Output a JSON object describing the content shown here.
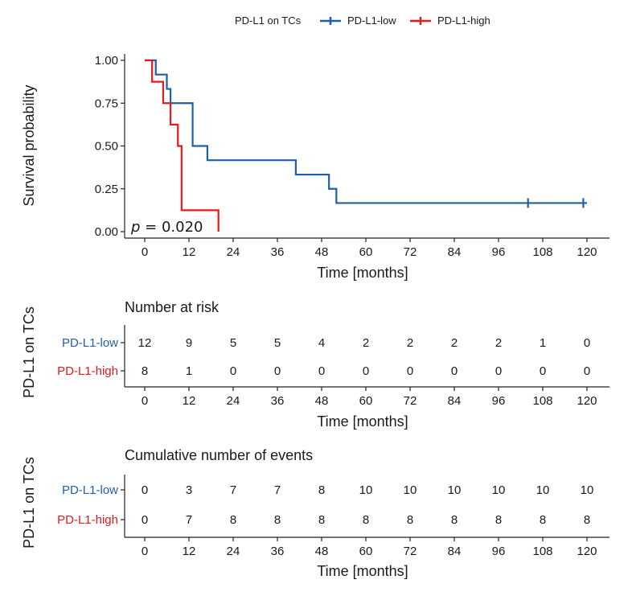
{
  "chart_data": [
    {
      "type": "line",
      "subtype": "kaplan-meier",
      "legend": {
        "title": "PD-L1 on TCs",
        "position": "top",
        "entries": [
          "PD-L1-low",
          "PD-L1-high"
        ]
      },
      "xlabel": "Time [months]",
      "ylabel": "Survival probability",
      "xlim": [
        0,
        120
      ],
      "ylim": [
        0,
        1
      ],
      "xticks": [
        0,
        12,
        24,
        36,
        48,
        60,
        72,
        84,
        96,
        108,
        120
      ],
      "xtick_labels": [
        "0",
        "12",
        "24",
        "36",
        "48",
        "60",
        "72",
        "84",
        "96",
        "108",
        "120"
      ],
      "yticks": [
        0,
        0.25,
        0.5,
        0.75,
        1.0
      ],
      "ytick_labels": [
        "0.00",
        "0.25",
        "0.50",
        "0.75",
        "1.00"
      ],
      "grid": false,
      "annotation": {
        "p_label": "p",
        "p_value": " = 0.020"
      },
      "series": [
        {
          "name": "PD-L1-low",
          "color": "#1f5fa8",
          "steps": [
            [
              0,
              1.0
            ],
            [
              3,
              0.917
            ],
            [
              6,
              0.833
            ],
            [
              7,
              0.75
            ],
            [
              13,
              0.5
            ],
            [
              17,
              0.417
            ],
            [
              41,
              0.333
            ],
            [
              50,
              0.25
            ],
            [
              52,
              0.167
            ],
            [
              120,
              0.167
            ]
          ],
          "censored": [
            [
              104,
              0.167
            ],
            [
              119,
              0.167
            ]
          ]
        },
        {
          "name": "PD-L1-high",
          "color": "#e41a1c",
          "steps": [
            [
              0,
              1.0
            ],
            [
              2,
              0.875
            ],
            [
              5,
              0.75
            ],
            [
              7,
              0.625
            ],
            [
              9,
              0.5
            ],
            [
              10,
              0.125
            ],
            [
              20,
              0.0
            ]
          ],
          "censored": []
        }
      ]
    },
    {
      "type": "table",
      "title": "Number at risk",
      "ylabel": "PD-L1 on TCs",
      "xlabel": "Time [months]",
      "columns": [
        "0",
        "12",
        "24",
        "36",
        "48",
        "60",
        "72",
        "84",
        "96",
        "108",
        "120"
      ],
      "rows": [
        {
          "name": "PD-L1-low",
          "color": "#1f5fa8",
          "values": [
            "12",
            "9",
            "5",
            "5",
            "4",
            "2",
            "2",
            "2",
            "2",
            "1",
            "0"
          ]
        },
        {
          "name": "PD-L1-high",
          "color": "#e41a1c",
          "values": [
            "8",
            "1",
            "0",
            "0",
            "0",
            "0",
            "0",
            "0",
            "0",
            "0",
            "0"
          ]
        }
      ]
    },
    {
      "type": "table",
      "title": "Cumulative number of events",
      "ylabel": "PD-L1 on TCs",
      "xlabel": "Time [months]",
      "columns": [
        "0",
        "12",
        "24",
        "36",
        "48",
        "60",
        "72",
        "84",
        "96",
        "108",
        "120"
      ],
      "rows": [
        {
          "name": "PD-L1-low",
          "color": "#1f5fa8",
          "values": [
            "0",
            "3",
            "7",
            "7",
            "8",
            "10",
            "10",
            "10",
            "10",
            "10",
            "10"
          ]
        },
        {
          "name": "PD-L1-high",
          "color": "#e41a1c",
          "values": [
            "0",
            "7",
            "8",
            "8",
            "8",
            "8",
            "8",
            "8",
            "8",
            "8",
            "8"
          ]
        }
      ]
    }
  ]
}
